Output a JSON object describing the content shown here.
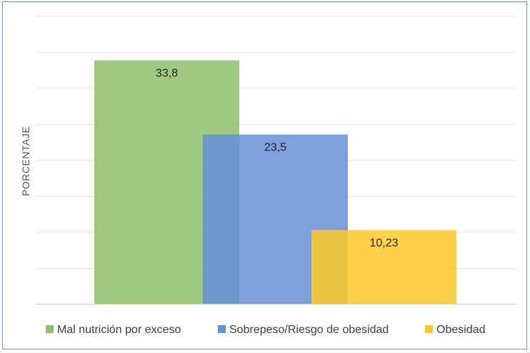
{
  "chart_data": {
    "type": "bar",
    "ylabel": "PORCENTAJE",
    "ylim": [
      0,
      40
    ],
    "ytick_step": 5,
    "grid": true,
    "legend_position": "bottom",
    "series": [
      {
        "name": "Mal nutrición por exceso",
        "value": 33.8,
        "label": "33,8",
        "color": "#8cbf6a"
      },
      {
        "name": "Sobrepeso/Riesgo de obesidad",
        "value": 23.5,
        "label": "23,5",
        "color": "#658fd6"
      },
      {
        "name": "Obesidad",
        "value": 10.23,
        "label": "10,23",
        "color": "#ffc928"
      }
    ]
  }
}
